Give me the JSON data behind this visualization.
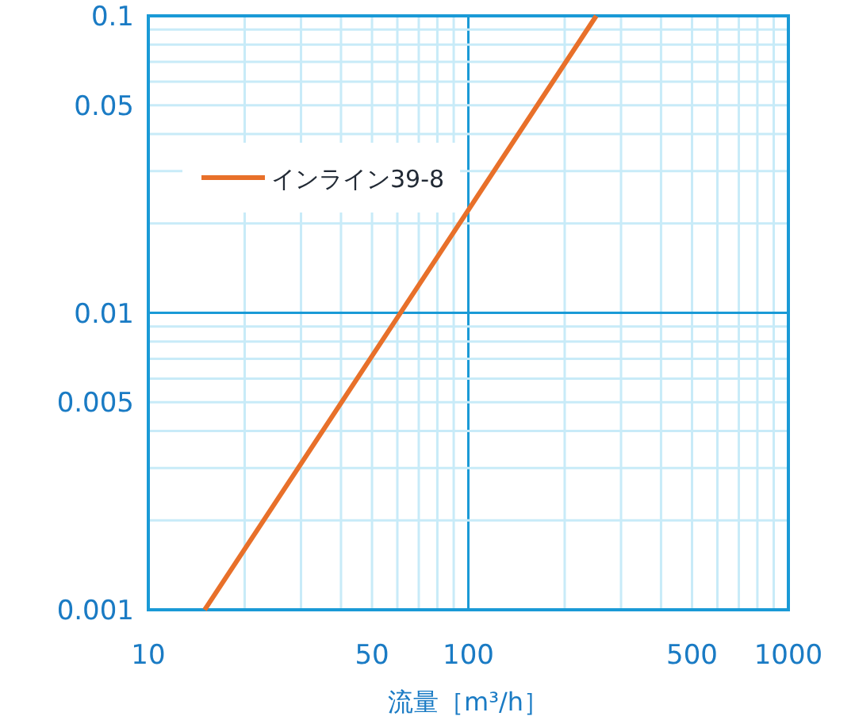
{
  "chart_data": {
    "type": "line",
    "xlabel": "流量［m³/h］",
    "log": "xy",
    "grid": true,
    "legend": "top left",
    "line_style": "solid",
    "marker": "none",
    "xlim": [
      10,
      1000
    ],
    "ylim": [
      0.001,
      0.1
    ],
    "xticks": [
      10,
      {
        "value": 20,
        "label": null
      },
      {
        "value": 30,
        "label": null
      },
      {
        "value": 40,
        "label": null
      },
      50,
      {
        "value": 60,
        "label": null
      },
      {
        "value": 70,
        "label": null
      },
      {
        "value": 80,
        "label": null
      },
      {
        "value": 90,
        "label": null
      },
      100,
      {
        "value": 200,
        "label": null
      },
      {
        "value": 300,
        "label": null
      },
      {
        "value": 400,
        "label": null
      },
      500,
      {
        "value": 600,
        "label": null
      },
      {
        "value": 700,
        "label": null
      },
      {
        "value": 800,
        "label": null
      },
      {
        "value": 900,
        "label": null
      },
      1000
    ],
    "yticks": [
      0.001,
      {
        "value": 0.002,
        "label": null
      },
      {
        "value": 0.003,
        "label": null
      },
      {
        "value": 0.004,
        "label": null
      },
      0.005,
      {
        "value": 0.006,
        "label": null
      },
      {
        "value": 0.007,
        "label": null
      },
      {
        "value": 0.008,
        "label": null
      },
      {
        "value": 0.009,
        "label": null
      },
      0.01,
      {
        "value": 0.02,
        "label": null
      },
      {
        "value": 0.03,
        "label": null
      },
      {
        "value": 0.04,
        "label": null
      },
      0.05,
      {
        "value": 0.06,
        "label": null
      },
      {
        "value": 0.07,
        "label": null
      },
      {
        "value": 0.08,
        "label": null
      },
      {
        "value": 0.09,
        "label": null
      },
      0.1
    ],
    "series": [
      {
        "name": "インライン39-8",
        "color": "#e8702a",
        "x": [
          15,
          100,
          251
        ],
        "values": [
          0.001,
          0.0222,
          0.1
        ]
      }
    ]
  }
}
